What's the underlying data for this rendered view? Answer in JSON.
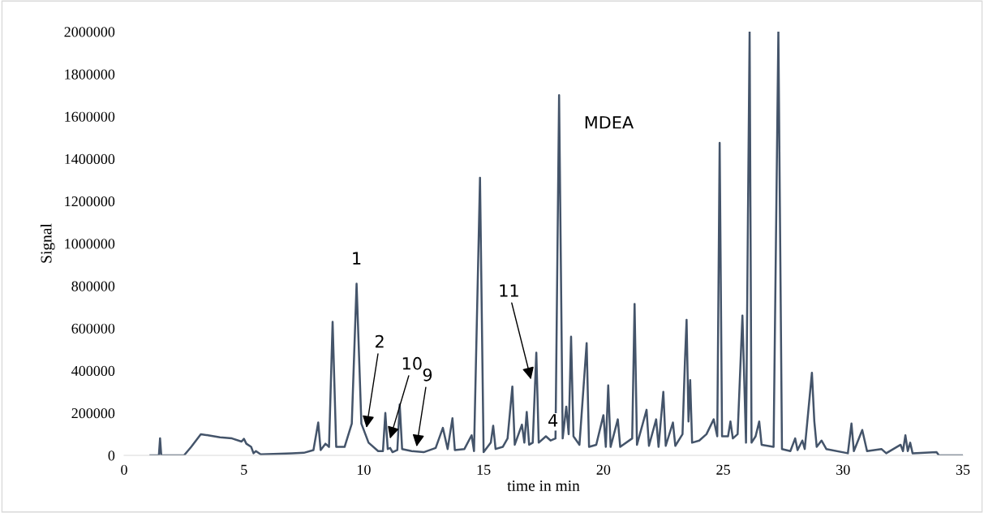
{
  "chart_data": {
    "type": "line",
    "xlabel": "time in min",
    "ylabel": "Signal",
    "xlim": [
      0,
      35
    ],
    "xticks": [
      0,
      5,
      10,
      15,
      20,
      25,
      30,
      35
    ],
    "ylim": [
      0,
      2000000
    ],
    "yticks": [
      0,
      200000,
      400000,
      600000,
      800000,
      1000000,
      1200000,
      1400000,
      1600000,
      1800000,
      2000000
    ],
    "grid": false,
    "legend": false,
    "marker": "none",
    "line_style": "solid",
    "series": [
      {
        "color": "#44546a",
        "x": [
          1.1,
          1.45,
          1.5,
          1.55,
          2.5,
          2.8,
          3.2,
          3.5,
          4.0,
          4.5,
          4.9,
          5.0,
          5.1,
          5.3,
          5.4,
          5.5,
          5.7,
          6.5,
          7.0,
          7.5,
          7.9,
          8.1,
          8.2,
          8.4,
          8.55,
          8.7,
          8.85,
          9.2,
          9.5,
          9.7,
          9.9,
          10.2,
          10.6,
          10.8,
          10.9,
          11.0,
          11.1,
          11.2,
          11.4,
          11.5,
          11.6,
          12.0,
          12.5,
          13.0,
          13.3,
          13.4,
          13.5,
          13.7,
          13.8,
          14.2,
          14.5,
          14.6,
          14.85,
          15.0,
          15.3,
          15.4,
          15.5,
          15.8,
          16.0,
          16.2,
          16.3,
          16.6,
          16.7,
          16.8,
          16.9,
          17.05,
          17.2,
          17.3,
          17.6,
          17.8,
          18.0,
          18.15,
          18.3,
          18.45,
          18.55,
          18.65,
          18.75,
          19.0,
          19.3,
          19.4,
          19.7,
          20.0,
          20.1,
          20.2,
          20.3,
          20.6,
          20.7,
          21.2,
          21.3,
          21.4,
          21.8,
          21.9,
          22.2,
          22.3,
          22.5,
          22.6,
          22.9,
          23.0,
          23.3,
          23.4,
          23.47,
          23.55,
          23.62,
          23.7,
          24.0,
          24.3,
          24.6,
          24.75,
          24.85,
          24.95,
          25.2,
          25.3,
          25.4,
          25.6,
          25.8,
          25.95,
          26.03,
          26.1,
          26.18,
          26.35,
          26.5,
          26.6,
          27.1,
          27.3,
          27.45,
          27.8,
          28.0,
          28.1,
          28.3,
          28.4,
          28.7,
          28.8,
          28.9,
          29.1,
          29.3,
          30.2,
          30.35,
          30.45,
          30.8,
          31.0,
          31.6,
          31.8,
          32.4,
          32.5,
          32.6,
          32.7,
          32.8,
          32.9,
          33.9,
          34.0,
          35.0
        ],
        "values": [
          0,
          0,
          80000,
          0,
          0,
          40000,
          100000,
          95000,
          85000,
          80000,
          65000,
          78000,
          55000,
          40000,
          10000,
          20000,
          5000,
          8000,
          10000,
          12000,
          25000,
          155000,
          25000,
          55000,
          40000,
          630000,
          40000,
          40000,
          150000,
          810000,
          150000,
          60000,
          20000,
          20000,
          200000,
          30000,
          35000,
          15000,
          25000,
          240000,
          30000,
          20000,
          15000,
          35000,
          130000,
          80000,
          30000,
          175000,
          25000,
          30000,
          95000,
          20000,
          1310000,
          15000,
          60000,
          140000,
          30000,
          40000,
          80000,
          325000,
          50000,
          145000,
          60000,
          205000,
          50000,
          60000,
          485000,
          60000,
          90000,
          70000,
          80000,
          1700000,
          80000,
          230000,
          100000,
          560000,
          90000,
          50000,
          530000,
          40000,
          50000,
          190000,
          40000,
          330000,
          40000,
          170000,
          40000,
          80000,
          715000,
          50000,
          215000,
          45000,
          170000,
          40000,
          300000,
          45000,
          155000,
          45000,
          100000,
          440000,
          640000,
          160000,
          355000,
          60000,
          70000,
          100000,
          170000,
          90000,
          1475000,
          90000,
          90000,
          160000,
          80000,
          100000,
          660000,
          60000,
          1120000,
          2000000,
          60000,
          90000,
          160000,
          50000,
          40000,
          2000000,
          30000,
          20000,
          80000,
          25000,
          70000,
          30000,
          390000,
          160000,
          40000,
          70000,
          30000,
          10000,
          150000,
          20000,
          120000,
          20000,
          30000,
          10000,
          50000,
          20000,
          95000,
          20000,
          60000,
          10000,
          15000,
          0,
          0
        ]
      }
    ],
    "annotations": [
      {
        "text": "1",
        "x": 9.7,
        "y": 810000
      },
      {
        "text": "2",
        "x": 10.1,
        "y": 120000
      },
      {
        "text": "10",
        "x": 11.07,
        "y": 69000
      },
      {
        "text": "9",
        "x": 12.19,
        "y": 31000
      },
      {
        "text": "11",
        "x": 17.0,
        "y": 349000
      },
      {
        "text": "4",
        "x": 17.2,
        "y": 222000
      },
      {
        "text": "MDEA",
        "x": 18.15,
        "y": 1586000
      }
    ]
  }
}
